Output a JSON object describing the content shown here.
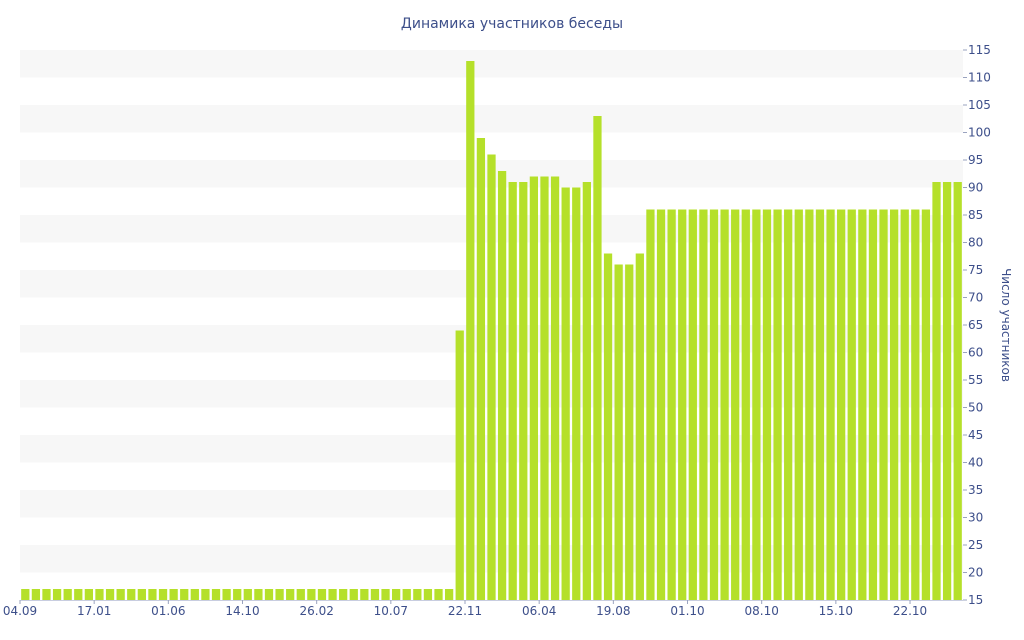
{
  "chart_data": {
    "type": "bar",
    "title": "Динамика участников беседы",
    "xlabel": "",
    "ylabel": "Число участников",
    "ylim": [
      15,
      115
    ],
    "y_ticks": [
      15,
      20,
      25,
      30,
      35,
      40,
      45,
      50,
      55,
      60,
      65,
      70,
      75,
      80,
      85,
      90,
      95,
      100,
      105,
      110,
      115
    ],
    "y_axis_side": "right",
    "grid": "horizontal alternating bands",
    "bar_color": "#b5e02a",
    "band_color": "#f7f7f7",
    "text_color": "#3d4f8a",
    "x_tick_labels": [
      {
        "index": 0,
        "label": "04.09"
      },
      {
        "index": 7,
        "label": "17.01"
      },
      {
        "index": 14,
        "label": "01.06"
      },
      {
        "index": 21,
        "label": "14.10"
      },
      {
        "index": 28,
        "label": "26.02"
      },
      {
        "index": 35,
        "label": "10.07"
      },
      {
        "index": 42,
        "label": "22.11"
      },
      {
        "index": 49,
        "label": "06.04"
      },
      {
        "index": 56,
        "label": "19.08"
      },
      {
        "index": 63,
        "label": "01.10"
      },
      {
        "index": 70,
        "label": "08.10"
      },
      {
        "index": 77,
        "label": "15.10"
      },
      {
        "index": 84,
        "label": "22.10"
      }
    ],
    "values": [
      17,
      17,
      17,
      17,
      17,
      17,
      17,
      17,
      17,
      17,
      17,
      17,
      17,
      17,
      17,
      17,
      17,
      17,
      17,
      17,
      17,
      17,
      17,
      17,
      17,
      17,
      17,
      17,
      17,
      17,
      17,
      17,
      17,
      17,
      17,
      17,
      17,
      17,
      17,
      17,
      17,
      64,
      113,
      99,
      96,
      93,
      91,
      91,
      92,
      92,
      92,
      90,
      90,
      91,
      103,
      78,
      76,
      76,
      78,
      86,
      86,
      86,
      86,
      86,
      86,
      86,
      86,
      86,
      86,
      86,
      86,
      86,
      86,
      86,
      86,
      86,
      86,
      86,
      86,
      86,
      86,
      86,
      86,
      86,
      86,
      86,
      91,
      91,
      91
    ]
  }
}
